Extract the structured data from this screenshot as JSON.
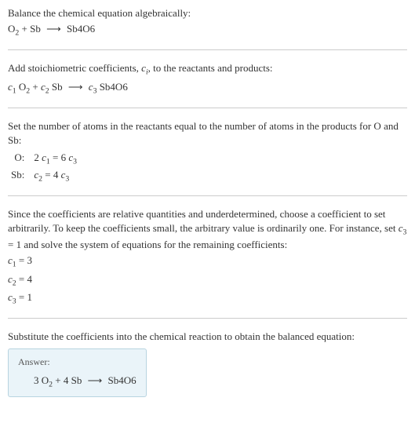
{
  "section1": {
    "line1": "Balance the chemical equation algebraically:",
    "equation_html": "O<sub>2</sub> + Sb <span class='arrow'>⟶</span> Sb4O6"
  },
  "section2": {
    "line1_html": "Add stoichiometric coefficients, <span class='italic'>c<sub>i</sub></span>, to the reactants and products:",
    "equation_html": "<span class='italic'>c</span><sub>1</sub> O<sub>2</sub> + <span class='italic'>c</span><sub>2</sub> Sb <span class='arrow'>⟶</span> <span class='italic'>c</span><sub>3</sub> Sb4O6"
  },
  "section3": {
    "line1": "Set the number of atoms in the reactants equal to the number of atoms in the products for O and Sb:",
    "rows": [
      {
        "label": "O:",
        "eq_html": "2 <span class='italic'>c</span><sub>1</sub> = 6 <span class='italic'>c</span><sub>3</sub>"
      },
      {
        "label": "Sb:",
        "eq_html": "<span class='italic'>c</span><sub>2</sub> = 4 <span class='italic'>c</span><sub>3</sub>"
      }
    ]
  },
  "section4": {
    "para_html": "Since the coefficients are relative quantities and underdetermined, choose a coefficient to set arbitrarily. To keep the coefficients small, the arbitrary value is ordinarily one. For instance, set <span class='italic'>c</span><sub>3</sub> = 1 and solve the system of equations for the remaining coefficients:",
    "lines": [
      "<span class='italic'>c</span><sub>1</sub> = 3",
      "<span class='italic'>c</span><sub>2</sub> = 4",
      "<span class='italic'>c</span><sub>3</sub> = 1"
    ]
  },
  "section5": {
    "line1": "Substitute the coefficients into the chemical reaction to obtain the balanced equation:",
    "answer_label": "Answer:",
    "answer_eq_html": "3 O<sub>2</sub> + 4 Sb <span class='arrow'>⟶</span> Sb4O6"
  },
  "colors": {
    "text": "#333333",
    "border": "#cccccc",
    "answer_bg": "#eaf4f9",
    "answer_border": "#b8d4e0"
  },
  "fontsize_body": 13
}
